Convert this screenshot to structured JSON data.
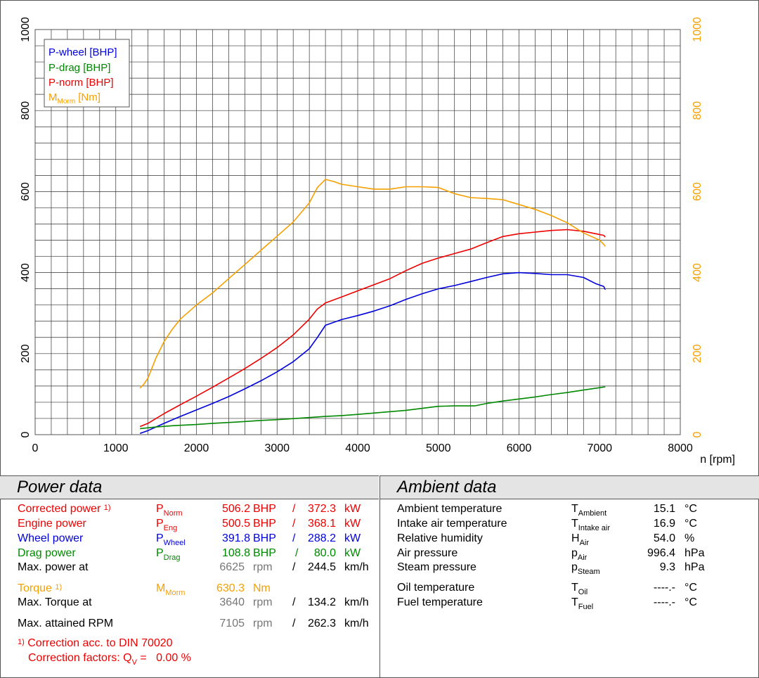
{
  "chart_data": {
    "type": "line",
    "xlabel": "n [rpm]",
    "xlim": [
      0,
      8000
    ],
    "ylim": [
      0,
      1000
    ],
    "x_ticks": [
      "0",
      "1000",
      "2000",
      "3000",
      "4000",
      "5000",
      "6000",
      "7000",
      "8000"
    ],
    "y_ticks_left": [
      "0",
      "200",
      "400",
      "600",
      "800",
      "1000"
    ],
    "y_ticks_right": [
      "0",
      "200",
      "400",
      "600",
      "800",
      "1000"
    ],
    "grid": true,
    "legend_position": "top-left",
    "series": [
      {
        "name": "P-wheel [BHP]",
        "color": "#0000dd",
        "x": [
          1300,
          1400,
          1600,
          1800,
          2000,
          2200,
          2400,
          2600,
          2800,
          3000,
          3200,
          3400,
          3500,
          3600,
          3800,
          4000,
          4200,
          4400,
          4600,
          4800,
          5000,
          5200,
          5400,
          5600,
          5800,
          6000,
          6200,
          6400,
          6600,
          6800,
          6950,
          7050,
          7070
        ],
        "y": [
          3,
          10,
          28,
          45,
          61,
          77,
          94,
          113,
          133,
          155,
          180,
          212,
          240,
          270,
          284,
          294,
          305,
          318,
          334,
          348,
          360,
          368,
          378,
          388,
          397,
          400,
          398,
          395,
          395,
          388,
          373,
          366,
          358
        ]
      },
      {
        "name": "P-drag [BHP]",
        "color": "#008800",
        "x": [
          1300,
          1500,
          1700,
          2000,
          2200,
          2500,
          2800,
          3000,
          3300,
          3600,
          3800,
          4000,
          4300,
          4600,
          4800,
          5000,
          5200,
          5450,
          5600,
          5800,
          6000,
          6200,
          6400,
          6600,
          6800,
          7000,
          7070
        ],
        "y": [
          15,
          19,
          22,
          25,
          28,
          31,
          35,
          37,
          41,
          45,
          47,
          50,
          55,
          60,
          65,
          70,
          71,
          71,
          77,
          83,
          88,
          93,
          99,
          104,
          110,
          116,
          118
        ]
      },
      {
        "name": "P-norm [BHP]",
        "color": "#ee0000",
        "x": [
          1300,
          1400,
          1600,
          1800,
          2000,
          2200,
          2400,
          2600,
          2800,
          3000,
          3200,
          3400,
          3500,
          3600,
          3800,
          4000,
          4200,
          4400,
          4600,
          4800,
          5000,
          5200,
          5400,
          5600,
          5800,
          6000,
          6200,
          6400,
          6600,
          6800,
          6950,
          7050,
          7070
        ],
        "y": [
          20,
          28,
          52,
          74,
          95,
          117,
          140,
          163,
          188,
          215,
          246,
          285,
          310,
          325,
          340,
          355,
          370,
          385,
          405,
          423,
          436,
          447,
          458,
          474,
          489,
          496,
          500,
          504,
          506,
          502,
          496,
          492,
          488
        ]
      },
      {
        "name": "M_Morm [Nm]",
        "color": "#f5a000",
        "x": [
          1300,
          1350,
          1400,
          1500,
          1600,
          1700,
          1800,
          2000,
          2200,
          2400,
          2600,
          2800,
          3000,
          3200,
          3400,
          3500,
          3600,
          3700,
          3800,
          4000,
          4200,
          4400,
          4600,
          4800,
          5000,
          5200,
          5400,
          5600,
          5800,
          6000,
          6200,
          6400,
          6600,
          6800,
          7000,
          7050,
          7070
        ],
        "y": [
          115,
          125,
          140,
          190,
          230,
          260,
          285,
          320,
          350,
          385,
          420,
          455,
          490,
          525,
          572,
          610,
          630,
          625,
          618,
          612,
          606,
          606,
          612,
          612,
          610,
          595,
          585,
          583,
          580,
          568,
          556,
          541,
          523,
          498,
          480,
          470,
          465
        ]
      }
    ]
  },
  "legend": [
    {
      "label": "P-wheel [BHP]",
      "color": "#0000dd"
    },
    {
      "label": "P-drag [BHP]",
      "color": "#008800"
    },
    {
      "label": "P-norm [BHP]",
      "color": "#ee0000"
    },
    {
      "main": "M",
      "sub": "Morm",
      "rest": " [Nm]",
      "color": "#f5a000"
    }
  ],
  "power": {
    "title": "Power data",
    "corrected": {
      "label": "Corrected power",
      "ref": "1)",
      "sym": "P",
      "sub": "Norm",
      "v1": "506.2",
      "u1": "BHP",
      "sep": "/",
      "v2": "372.3",
      "u2": "kW"
    },
    "engine": {
      "label": "Engine power",
      "sym": "P",
      "sub": "Eng",
      "v1": "500.5",
      "u1": "BHP",
      "sep": "/",
      "v2": "368.1",
      "u2": "kW"
    },
    "wheel": {
      "label": "Wheel power",
      "sym": "P",
      "sub": "Wheel",
      "v1": "391.8",
      "u1": "BHP",
      "sep": "/",
      "v2": "288.2",
      "u2": "kW"
    },
    "drag": {
      "label": "Drag power",
      "sym": "P",
      "sub": "Drag",
      "v1": "108.8",
      "u1": "BHP",
      "sep": "/",
      "v2": "80.0",
      "u2": "kW"
    },
    "maxpower": {
      "label": "Max. power at",
      "v1": "6625",
      "u1": "rpm",
      "sep": "/",
      "v2": "244.5",
      "u2": "km/h"
    },
    "torque": {
      "label": "Torque",
      "ref": "1)",
      "sym": "M",
      "sub": "Morm",
      "v1": "630.3",
      "u1": "Nm"
    },
    "maxtorque": {
      "label": "Max. Torque at",
      "v1": "3640",
      "u1": "rpm",
      "sep": "/",
      "v2": "134.2",
      "u2": "km/h"
    },
    "maxrpm": {
      "label": "Max. attained RPM",
      "v1": "7105",
      "u1": "rpm",
      "sep": "/",
      "v2": "262.3",
      "u2": "km/h"
    },
    "note1": {
      "ref": "1)",
      "text": "Correction acc. to DIN 70020"
    },
    "note2": {
      "text": "Correction factors: Q",
      "sub": "V",
      "eq": " =",
      "val": "0.00 %"
    }
  },
  "ambient": {
    "title": "Ambient data",
    "rows": [
      {
        "label": "Ambient temperature",
        "sym": "T",
        "sub": "Ambient",
        "val": "15.1",
        "unit": "°C"
      },
      {
        "label": "Intake air temperature",
        "sym": "T",
        "sub": "Intake air",
        "val": "16.9",
        "unit": "°C"
      },
      {
        "label": "Relative humidity",
        "sym": "H",
        "sub": "Air",
        "val": "54.0",
        "unit": "%"
      },
      {
        "label": "Air pressure",
        "sym": "p",
        "sub": "Air",
        "val": "996.4",
        "unit": "hPa"
      },
      {
        "label": "Steam pressure",
        "sym": "p",
        "sub": "Steam",
        "val": "9.3",
        "unit": "hPa"
      },
      {
        "label": "Oil temperature",
        "sym": "T",
        "sub": "Oil",
        "val": "----.-",
        "unit": "°C"
      },
      {
        "label": "Fuel temperature",
        "sym": "T",
        "sub": "Fuel",
        "val": "----.-",
        "unit": "°C"
      }
    ]
  }
}
